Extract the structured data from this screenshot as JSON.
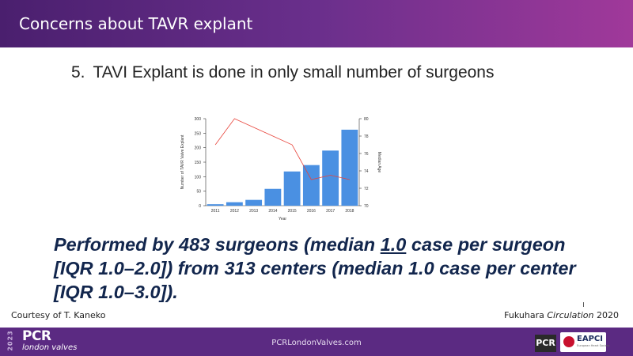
{
  "header": {
    "title": "Concerns about TAVR explant"
  },
  "subtitle": {
    "number": "5.",
    "text": "TAVI Explant is done in only small number of surgeons"
  },
  "chart_data": {
    "type": "bar",
    "categories": [
      "2011",
      "2012",
      "2013",
      "2014",
      "2015",
      "2016",
      "2017",
      "2018"
    ],
    "series": [
      {
        "values": [
          5,
          12,
          20,
          58,
          118,
          140,
          190,
          262
        ]
      },
      {
        "values": [
          77,
          80,
          79,
          78,
          77,
          73,
          73.5,
          73
        ]
      }
    ],
    "xlabel": "Year",
    "ylabel": "Number of TAVR Valve Explant",
    "y2label": "Median Age",
    "ylim": [
      0,
      300
    ],
    "y2lim": [
      70,
      80
    ],
    "yticks": [
      "0",
      "50",
      "100",
      "150",
      "200",
      "250",
      "300"
    ],
    "y2ticks": [
      "70",
      "72",
      "74",
      "76",
      "78",
      "80"
    ],
    "colors": {
      "bar": "#4a90e2",
      "line": "#e8453c"
    }
  },
  "body": {
    "part1": "Performed by 483 surgeons (median ",
    "underlined": "1.0",
    "part2": " case per surgeon [IQR 1.0–2.0]) from 313 centers (median 1.0 case per center [IQR 1.0–3.0])."
  },
  "courtesy": "Courtesy of T. Kaneko",
  "citation": {
    "author": "Fukuhara ",
    "journal": "Circulation",
    "year": " 2020"
  },
  "footer": {
    "year_vertical": "2023",
    "logo_main": "PCR",
    "logo_sub": "london valves",
    "url": "PCRLondonValves.com",
    "badge_pcr": "PCR",
    "badge_eapci": "EAPCI",
    "badge_eapci_sub": "European Heart Society"
  }
}
